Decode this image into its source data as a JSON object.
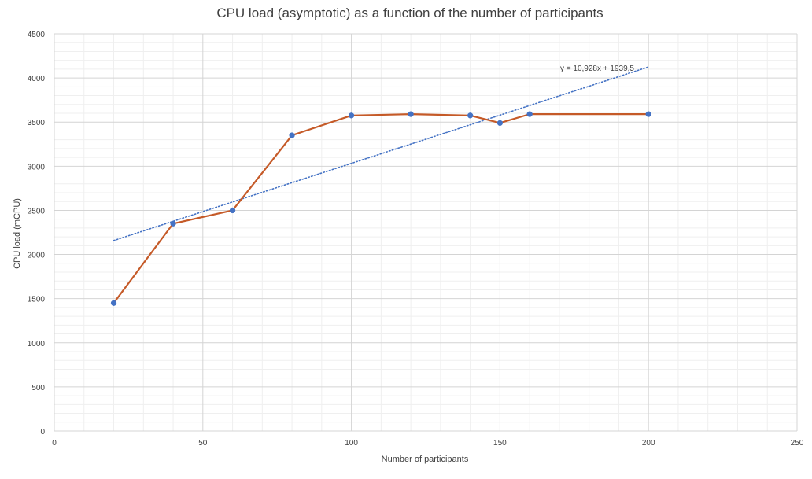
{
  "chart_data": {
    "type": "scatter",
    "title": "CPU load (asymptotic) as a function of the number of participants",
    "xlabel": "Number of participants",
    "ylabel": "CPU load (mCPU)",
    "xlim": [
      0,
      250
    ],
    "ylim": [
      0,
      4500
    ],
    "x_major_ticks": [
      0,
      50,
      100,
      150,
      200,
      250
    ],
    "x_minor_step": 10,
    "y_major_ticks": [
      0,
      500,
      1000,
      1500,
      2000,
      2500,
      3000,
      3500,
      4000,
      4500
    ],
    "y_minor_step": 100,
    "grid": true,
    "legend": "none",
    "series": [
      {
        "x": [
          20,
          40,
          60,
          80,
          100,
          120,
          140,
          150,
          160,
          200
        ],
        "y": [
          1450,
          2350,
          2500,
          3350,
          3575,
          3590,
          3575,
          3490,
          3590,
          3590
        ],
        "line_color": "#c55a28",
        "marker_color": "#4472c4",
        "style": "scatter-with-straight-lines"
      }
    ],
    "trendline": {
      "type": "linear",
      "slope": 10.928,
      "intercept": 1939.5,
      "x_range": [
        20,
        200
      ],
      "color": "#4472c4",
      "style": "dotted",
      "label": "y = 10,928x + 1939,5"
    }
  }
}
